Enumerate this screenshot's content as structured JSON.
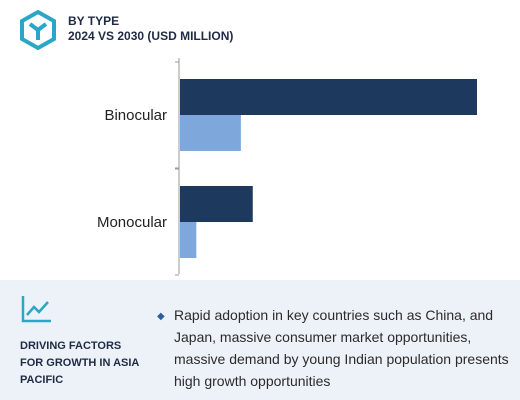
{
  "header": {
    "title": "BY TYPE",
    "subtitle": "2024 VS 2030 (USD MILLION)"
  },
  "colors": {
    "series_2030": "#1d3a5e",
    "series_2024": "#7ea8db",
    "accent": "#2aa7c6"
  },
  "chart_data": {
    "type": "bar",
    "orientation": "horizontal",
    "categories": [
      "Binocular",
      "Monocular"
    ],
    "series": [
      {
        "values": [
          100,
          24.5
        ]
      },
      {
        "values": [
          20.5,
          5.5
        ]
      }
    ],
    "xlim": [
      0,
      100
    ],
    "grid": false,
    "legend": "none"
  },
  "footer": {
    "icon": "trend-chart-icon",
    "title": "DRIVING FACTORS FOR GROWTH IN ASIA PACIFIC",
    "bullets": [
      {
        "icon": "diamond-bullet-icon",
        "text": "Rapid adoption in  key countries such as China, and Japan, massive consumer market opportunities, massive demand by young Indian population presents high growth opportunities"
      }
    ]
  }
}
